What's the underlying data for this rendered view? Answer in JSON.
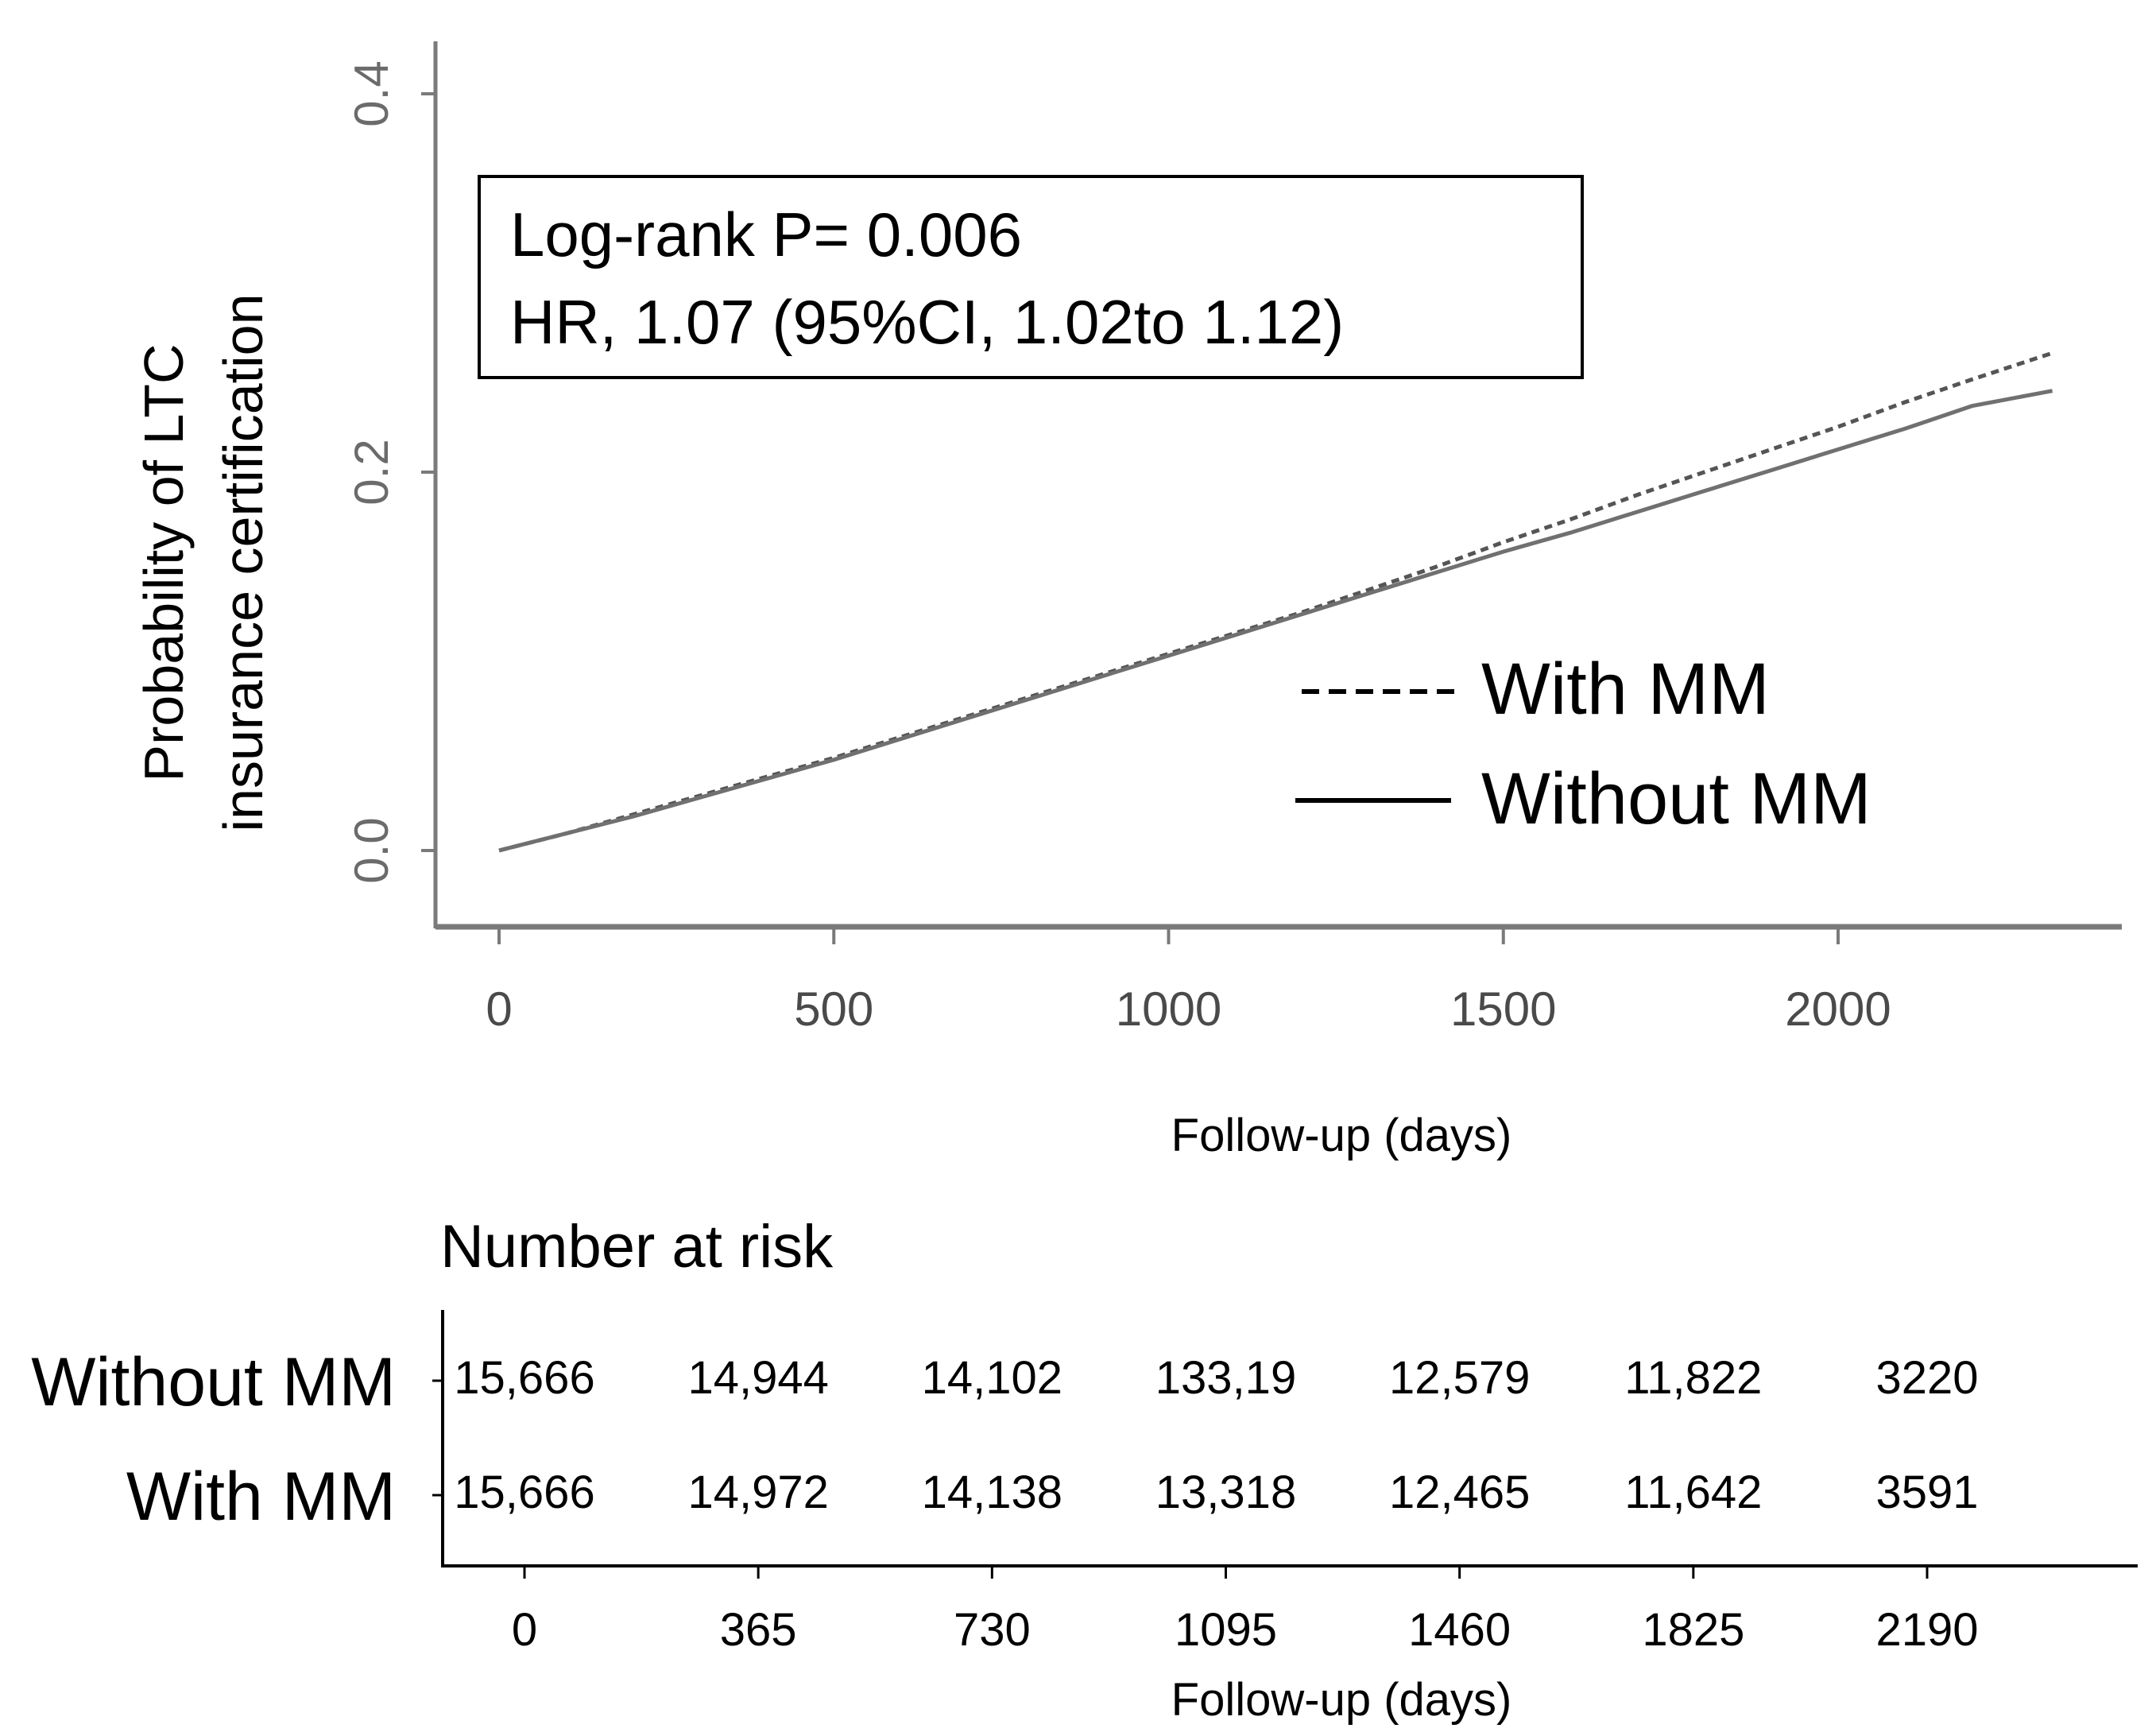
{
  "chart_data": [
    {
      "type": "line",
      "title": "",
      "xlabel": "Follow-up (days)",
      "ylabel": [
        "Probability of LTC",
        "insurance certification"
      ],
      "xlim": [
        -95,
        2420
      ],
      "ylim": [
        -0.04,
        0.43
      ],
      "xticks": [
        0,
        500,
        1000,
        1500,
        2000
      ],
      "xtick_labels": [
        "0",
        "500",
        "1000",
        "1500",
        "2000"
      ],
      "yticks": [
        0.0,
        0.2,
        0.4
      ],
      "ytick_labels": [
        "0.0",
        "0.2",
        "0.4"
      ],
      "grid": false,
      "legend_position": "center-right",
      "annotation": [
        "Log-rank P= 0.006",
        "HR, 1.07 (95%CI, 1.02to 1.12)"
      ],
      "series": [
        {
          "name": "With MM",
          "style": "dashed",
          "x": [
            0,
            100,
            200,
            300,
            400,
            500,
            600,
            700,
            800,
            900,
            1000,
            1100,
            1200,
            1300,
            1400,
            1500,
            1600,
            1700,
            1800,
            1900,
            2000,
            2100,
            2200,
            2320
          ],
          "y": [
            0.0,
            0.009,
            0.019,
            0.029,
            0.039,
            0.049,
            0.06,
            0.071,
            0.082,
            0.093,
            0.104,
            0.115,
            0.126,
            0.138,
            0.15,
            0.163,
            0.175,
            0.188,
            0.2,
            0.212,
            0.224,
            0.237,
            0.249,
            0.263
          ]
        },
        {
          "name": "Without MM",
          "style": "solid",
          "x": [
            0,
            100,
            200,
            300,
            400,
            500,
            600,
            700,
            800,
            900,
            1000,
            1100,
            1200,
            1300,
            1400,
            1500,
            1600,
            1700,
            1800,
            1900,
            2000,
            2100,
            2200,
            2320
          ],
          "y": [
            0.0,
            0.009,
            0.018,
            0.028,
            0.038,
            0.048,
            0.059,
            0.07,
            0.081,
            0.092,
            0.103,
            0.114,
            0.125,
            0.136,
            0.147,
            0.158,
            0.168,
            0.179,
            0.19,
            0.201,
            0.212,
            0.223,
            0.235,
            0.243
          ]
        }
      ]
    },
    {
      "type": "table",
      "title": "Number at risk",
      "xlabel": "Follow-up (days)",
      "x": [
        0,
        365,
        730,
        1095,
        1460,
        1825,
        2190
      ],
      "xtick_labels": [
        "0",
        "365",
        "730",
        "1095",
        "1460",
        "1825",
        "2190"
      ],
      "rows": [
        {
          "name": "Without MM",
          "values": [
            "15,666",
            "14,944",
            "14,102",
            "133,19",
            "12,579",
            "11,822",
            "3220"
          ]
        },
        {
          "name": "With MM",
          "values": [
            "15,666",
            "14,972",
            "14,138",
            "13,318",
            "12,465",
            "11,642",
            "3591"
          ]
        }
      ]
    }
  ]
}
